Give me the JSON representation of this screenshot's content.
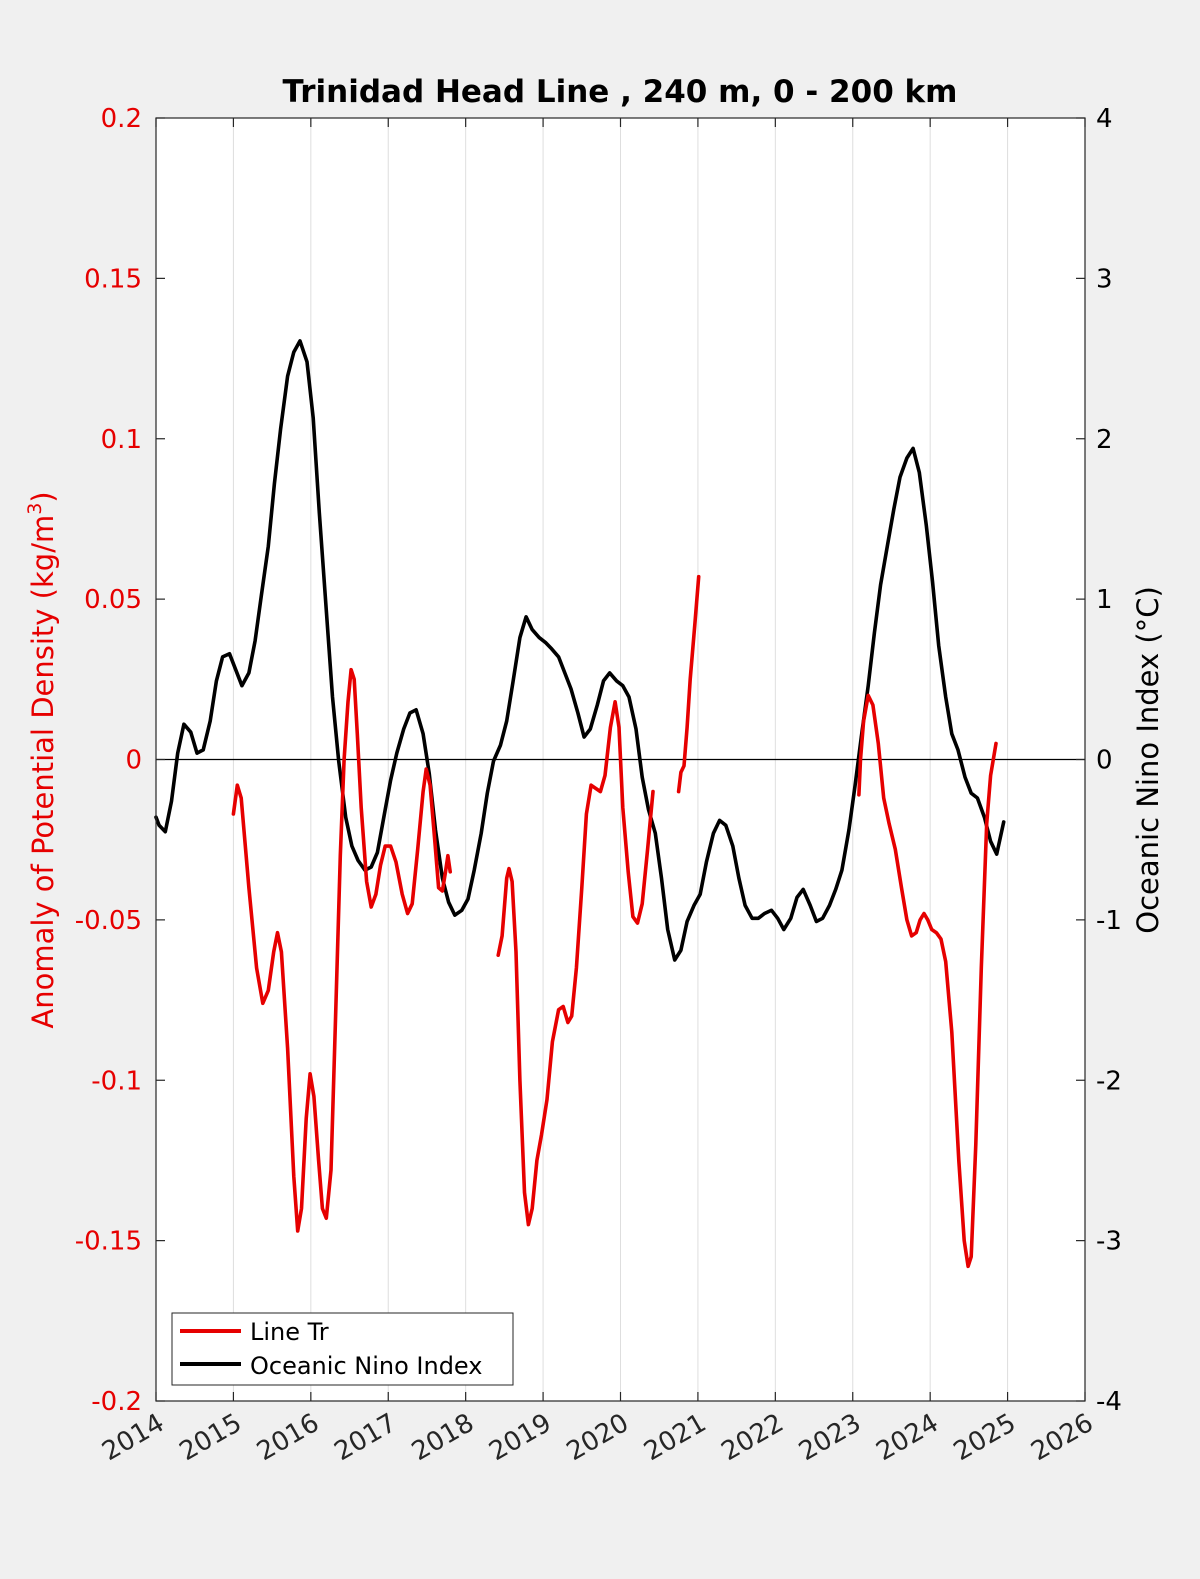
{
  "chart_data": {
    "type": "line",
    "title": "Trinidad Head Line , 240 m, 0 - 200 km",
    "ylabel_left": "Anomaly of Potential Density (kg/m",
    "ylabel_left_sup": "3",
    "ylabel_left_close": ")",
    "ylabel_right": "Oceanic Nino Index (°C)",
    "xlim": [
      2014,
      2026
    ],
    "ylim_left": [
      -0.2,
      0.2
    ],
    "ylim_right": [
      -4,
      4
    ],
    "x_ticks": [
      "2014",
      "2015",
      "2016",
      "2017",
      "2018",
      "2019",
      "2020",
      "2021",
      "2022",
      "2023",
      "2024",
      "2025",
      "2026"
    ],
    "y_left_ticks": [
      "-0.2",
      "-0.15",
      "-0.1",
      "-0.05",
      "0",
      "0.05",
      "0.1",
      "0.15",
      "0.2"
    ],
    "y_right_ticks": [
      "-4",
      "-3",
      "-2",
      "-1",
      "0",
      "1",
      "2",
      "3",
      "4"
    ],
    "grid": "x",
    "zero_line": true,
    "legend_position": "bottom-left",
    "colors": {
      "line_tr": "#e60000",
      "oni": "#000000",
      "left_axis": "#e60000",
      "right_axis": "#000000"
    },
    "series": [
      {
        "name": "Line Tr",
        "axis": "left",
        "color": "#e60000",
        "segments": [
          [
            [
              2015.0,
              -0.017
            ],
            [
              2015.05,
              -0.008
            ],
            [
              2015.1,
              -0.012
            ],
            [
              2015.2,
              -0.04
            ],
            [
              2015.3,
              -0.065
            ],
            [
              2015.38,
              -0.076
            ],
            [
              2015.45,
              -0.072
            ],
            [
              2015.52,
              -0.06
            ],
            [
              2015.57,
              -0.054
            ],
            [
              2015.62,
              -0.06
            ],
            [
              2015.7,
              -0.09
            ],
            [
              2015.78,
              -0.13
            ],
            [
              2015.83,
              -0.147
            ],
            [
              2015.88,
              -0.14
            ],
            [
              2015.94,
              -0.112
            ],
            [
              2015.99,
              -0.098
            ],
            [
              2016.04,
              -0.105
            ],
            [
              2016.1,
              -0.125
            ],
            [
              2016.15,
              -0.14
            ],
            [
              2016.2,
              -0.143
            ],
            [
              2016.26,
              -0.128
            ],
            [
              2016.32,
              -0.08
            ],
            [
              2016.38,
              -0.03
            ],
            [
              2016.43,
              0.0
            ],
            [
              2016.48,
              0.018
            ],
            [
              2016.52,
              0.028
            ],
            [
              2016.56,
              0.025
            ],
            [
              2016.6,
              0.008
            ],
            [
              2016.65,
              -0.015
            ],
            [
              2016.72,
              -0.038
            ],
            [
              2016.78,
              -0.046
            ],
            [
              2016.84,
              -0.042
            ],
            [
              2016.9,
              -0.033
            ],
            [
              2016.96,
              -0.027
            ],
            [
              2017.03,
              -0.027
            ],
            [
              2017.1,
              -0.032
            ],
            [
              2017.18,
              -0.042
            ],
            [
              2017.25,
              -0.048
            ],
            [
              2017.31,
              -0.045
            ],
            [
              2017.38,
              -0.028
            ],
            [
              2017.45,
              -0.01
            ],
            [
              2017.49,
              -0.003
            ],
            [
              2017.54,
              -0.008
            ],
            [
              2017.6,
              -0.025
            ],
            [
              2017.65,
              -0.04
            ],
            [
              2017.7,
              -0.041
            ],
            [
              2017.74,
              -0.035
            ],
            [
              2017.77,
              -0.03
            ],
            [
              2017.8,
              -0.035
            ]
          ],
          [
            [
              2018.42,
              -0.061
            ],
            [
              2018.47,
              -0.055
            ],
            [
              2018.53,
              -0.037
            ],
            [
              2018.56,
              -0.034
            ],
            [
              2018.6,
              -0.038
            ],
            [
              2018.65,
              -0.06
            ],
            [
              2018.7,
              -0.1
            ],
            [
              2018.76,
              -0.135
            ],
            [
              2018.81,
              -0.145
            ],
            [
              2018.86,
              -0.14
            ],
            [
              2018.92,
              -0.125
            ],
            [
              2018.98,
              -0.117
            ],
            [
              2019.05,
              -0.106
            ],
            [
              2019.12,
              -0.088
            ],
            [
              2019.2,
              -0.078
            ],
            [
              2019.26,
              -0.077
            ],
            [
              2019.32,
              -0.082
            ],
            [
              2019.37,
              -0.08
            ],
            [
              2019.43,
              -0.065
            ],
            [
              2019.5,
              -0.04
            ],
            [
              2019.56,
              -0.017
            ],
            [
              2019.62,
              -0.008
            ],
            [
              2019.68,
              -0.009
            ],
            [
              2019.74,
              -0.01
            ],
            [
              2019.8,
              -0.005
            ],
            [
              2019.87,
              0.01
            ],
            [
              2019.93,
              0.018
            ],
            [
              2019.98,
              0.01
            ],
            [
              2020.03,
              -0.015
            ],
            [
              2020.1,
              -0.035
            ],
            [
              2020.16,
              -0.049
            ],
            [
              2020.22,
              -0.051
            ],
            [
              2020.28,
              -0.045
            ],
            [
              2020.35,
              -0.028
            ],
            [
              2020.42,
              -0.01
            ]
          ],
          [
            [
              2020.75,
              -0.01
            ],
            [
              2020.78,
              -0.004
            ],
            [
              2020.82,
              -0.002
            ],
            [
              2020.86,
              0.01
            ],
            [
              2020.9,
              0.025
            ],
            [
              2020.96,
              0.042
            ],
            [
              2021.01,
              0.057
            ]
          ],
          [
            [
              2023.08,
              -0.011
            ],
            [
              2023.1,
              0.0
            ],
            [
              2023.14,
              0.012
            ],
            [
              2023.2,
              0.02
            ],
            [
              2023.26,
              0.017
            ],
            [
              2023.33,
              0.005
            ],
            [
              2023.4,
              -0.012
            ],
            [
              2023.47,
              -0.02
            ],
            [
              2023.55,
              -0.028
            ],
            [
              2023.63,
              -0.04
            ],
            [
              2023.7,
              -0.05
            ],
            [
              2023.76,
              -0.055
            ],
            [
              2023.82,
              -0.054
            ],
            [
              2023.87,
              -0.05
            ],
            [
              2023.92,
              -0.048
            ],
            [
              2023.97,
              -0.05
            ],
            [
              2024.02,
              -0.053
            ],
            [
              2024.08,
              -0.054
            ],
            [
              2024.14,
              -0.056
            ],
            [
              2024.2,
              -0.063
            ],
            [
              2024.28,
              -0.085
            ],
            [
              2024.37,
              -0.125
            ],
            [
              2024.44,
              -0.15
            ],
            [
              2024.49,
              -0.158
            ],
            [
              2024.53,
              -0.155
            ],
            [
              2024.59,
              -0.12
            ],
            [
              2024.66,
              -0.065
            ],
            [
              2024.73,
              -0.02
            ],
            [
              2024.78,
              -0.005
            ],
            [
              2024.85,
              0.005
            ]
          ]
        ]
      },
      {
        "name": "Oceanic Nino Index",
        "axis": "right",
        "color": "#000000",
        "segments": [
          [
            [
              2014.0,
              -0.36
            ],
            [
              2014.04,
              -0.41
            ],
            [
              2014.12,
              -0.45
            ],
            [
              2014.2,
              -0.26
            ],
            [
              2014.28,
              0.04
            ],
            [
              2014.36,
              0.22
            ],
            [
              2014.45,
              0.17
            ],
            [
              2014.53,
              0.04
            ],
            [
              2014.61,
              0.06
            ],
            [
              2014.7,
              0.24
            ],
            [
              2014.78,
              0.49
            ],
            [
              2014.86,
              0.64
            ],
            [
              2014.95,
              0.66
            ],
            [
              2015.03,
              0.56
            ],
            [
              2015.11,
              0.46
            ],
            [
              2015.2,
              0.54
            ],
            [
              2015.28,
              0.74
            ],
            [
              2015.36,
              1.02
            ],
            [
              2015.45,
              1.33
            ],
            [
              2015.53,
              1.72
            ],
            [
              2015.61,
              2.06
            ],
            [
              2015.7,
              2.39
            ],
            [
              2015.78,
              2.54
            ],
            [
              2015.86,
              2.61
            ],
            [
              2015.95,
              2.48
            ],
            [
              2016.03,
              2.13
            ],
            [
              2016.11,
              1.54
            ],
            [
              2016.2,
              0.93
            ],
            [
              2016.28,
              0.39
            ],
            [
              2016.36,
              -0.01
            ],
            [
              2016.45,
              -0.36
            ],
            [
              2016.53,
              -0.54
            ],
            [
              2016.61,
              -0.63
            ],
            [
              2016.7,
              -0.69
            ],
            [
              2016.78,
              -0.67
            ],
            [
              2016.86,
              -0.58
            ],
            [
              2016.95,
              -0.34
            ],
            [
              2017.03,
              -0.13
            ],
            [
              2017.11,
              0.04
            ],
            [
              2017.2,
              0.19
            ],
            [
              2017.28,
              0.29
            ],
            [
              2017.36,
              0.31
            ],
            [
              2017.45,
              0.16
            ],
            [
              2017.53,
              -0.09
            ],
            [
              2017.61,
              -0.44
            ],
            [
              2017.7,
              -0.74
            ],
            [
              2017.78,
              -0.89
            ],
            [
              2017.86,
              -0.97
            ],
            [
              2017.95,
              -0.94
            ],
            [
              2018.03,
              -0.87
            ],
            [
              2018.11,
              -0.69
            ],
            [
              2018.2,
              -0.46
            ],
            [
              2018.28,
              -0.21
            ],
            [
              2018.36,
              -0.01
            ],
            [
              2018.45,
              0.09
            ],
            [
              2018.53,
              0.24
            ],
            [
              2018.61,
              0.48
            ],
            [
              2018.7,
              0.76
            ],
            [
              2018.78,
              0.89
            ],
            [
              2018.86,
              0.81
            ],
            [
              2018.95,
              0.76
            ],
            [
              2019.03,
              0.73
            ],
            [
              2019.11,
              0.69
            ],
            [
              2019.2,
              0.64
            ],
            [
              2019.28,
              0.54
            ],
            [
              2019.36,
              0.44
            ],
            [
              2019.45,
              0.29
            ],
            [
              2019.53,
              0.14
            ],
            [
              2019.61,
              0.19
            ],
            [
              2019.7,
              0.34
            ],
            [
              2019.78,
              0.49
            ],
            [
              2019.86,
              0.54
            ],
            [
              2019.95,
              0.49
            ],
            [
              2020.03,
              0.46
            ],
            [
              2020.11,
              0.39
            ],
            [
              2020.2,
              0.19
            ],
            [
              2020.28,
              -0.11
            ],
            [
              2020.36,
              -0.31
            ],
            [
              2020.45,
              -0.46
            ],
            [
              2020.53,
              -0.74
            ],
            [
              2020.61,
              -1.06
            ],
            [
              2020.7,
              -1.25
            ],
            [
              2020.78,
              -1.19
            ],
            [
              2020.86,
              -1.01
            ],
            [
              2020.95,
              -0.91
            ],
            [
              2021.03,
              -0.84
            ],
            [
              2021.11,
              -0.64
            ],
            [
              2021.2,
              -0.46
            ],
            [
              2021.28,
              -0.38
            ],
            [
              2021.36,
              -0.41
            ],
            [
              2021.45,
              -0.54
            ],
            [
              2021.53,
              -0.74
            ],
            [
              2021.61,
              -0.91
            ],
            [
              2021.7,
              -0.99
            ],
            [
              2021.78,
              -0.99
            ],
            [
              2021.86,
              -0.96
            ],
            [
              2021.95,
              -0.94
            ],
            [
              2022.03,
              -0.99
            ],
            [
              2022.11,
              -1.06
            ],
            [
              2022.2,
              -0.99
            ],
            [
              2022.28,
              -0.86
            ],
            [
              2022.36,
              -0.81
            ],
            [
              2022.45,
              -0.91
            ],
            [
              2022.53,
              -1.01
            ],
            [
              2022.61,
              -0.99
            ],
            [
              2022.7,
              -0.91
            ],
            [
              2022.78,
              -0.81
            ],
            [
              2022.86,
              -0.69
            ],
            [
              2022.95,
              -0.44
            ],
            [
              2023.03,
              -0.16
            ],
            [
              2023.11,
              0.14
            ],
            [
              2023.2,
              0.46
            ],
            [
              2023.28,
              0.79
            ],
            [
              2023.36,
              1.09
            ],
            [
              2023.45,
              1.34
            ],
            [
              2023.53,
              1.56
            ],
            [
              2023.61,
              1.76
            ],
            [
              2023.7,
              1.88
            ],
            [
              2023.78,
              1.94
            ],
            [
              2023.86,
              1.79
            ],
            [
              2023.95,
              1.46
            ],
            [
              2024.03,
              1.11
            ],
            [
              2024.11,
              0.71
            ],
            [
              2024.2,
              0.39
            ],
            [
              2024.28,
              0.16
            ],
            [
              2024.36,
              0.06
            ],
            [
              2024.45,
              -0.11
            ],
            [
              2024.53,
              -0.21
            ],
            [
              2024.61,
              -0.24
            ],
            [
              2024.7,
              -0.36
            ],
            [
              2024.78,
              -0.51
            ],
            [
              2024.86,
              -0.59
            ],
            [
              2024.95,
              -0.39
            ]
          ]
        ]
      }
    ]
  },
  "legend": {
    "items": [
      {
        "label": "Line Tr",
        "color": "#e60000"
      },
      {
        "label": "Oceanic Nino Index",
        "color": "#000000"
      }
    ]
  }
}
